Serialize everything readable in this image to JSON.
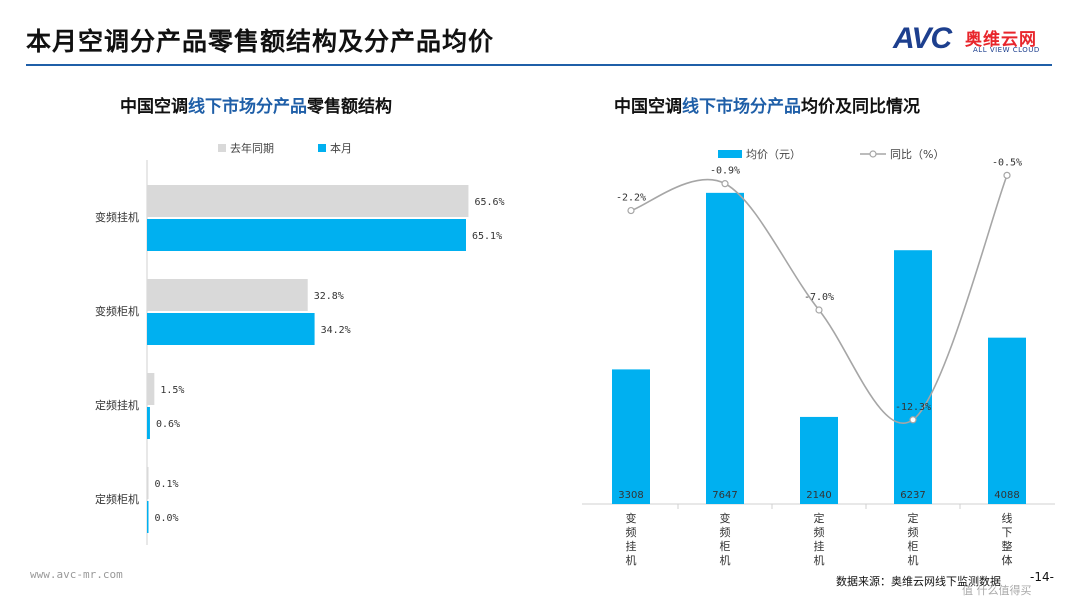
{
  "header": {
    "title": "本月空调分产品零售额结构及分产品均价",
    "logo_avc": "AVC",
    "logo_cn": "奥维云网",
    "logo_en": "ALL VIEW CLOUD"
  },
  "footer": {
    "url": "www.avc-mr.com",
    "source": "数据来源：奥维云网线下监测数据",
    "page_number": "-14-",
    "badge": "值 什么值得买"
  },
  "colors": {
    "blue": "#00b0f0",
    "gray_bar": "#d9d9d9",
    "line": "#a6a6a6",
    "accent": "#1f5fa8"
  },
  "chart_data": [
    {
      "type": "bar",
      "orientation": "horizontal",
      "title_parts": [
        "中国空调",
        "线下市场分产品",
        "零售额结构"
      ],
      "categories": [
        "变频挂机",
        "变频柜机",
        "定频挂机",
        "定频柜机"
      ],
      "series": [
        {
          "name": "去年同期",
          "values": [
            65.6,
            32.8,
            1.5,
            0.1
          ],
          "labels": [
            "65.6%",
            "32.8%",
            "1.5%",
            "0.1%"
          ]
        },
        {
          "name": "本月",
          "values": [
            65.1,
            34.2,
            0.6,
            0.0
          ],
          "labels": [
            "65.1%",
            "34.2%",
            "0.6%",
            "0.0%"
          ]
        }
      ],
      "legend_position": "top",
      "xlim": [
        0,
        70
      ],
      "grid": false
    },
    {
      "type": "bar+line",
      "title_parts": [
        "中国空调",
        "线下市场分产品",
        "均价及同比情况"
      ],
      "categories": [
        "变频挂机",
        "变频柜机",
        "定频挂机",
        "定频柜机",
        "线下整体"
      ],
      "bar_series": {
        "name": "均价（元）",
        "values": [
          3308,
          7647,
          2140,
          6237,
          4088
        ],
        "labels": [
          "3308",
          "7647",
          "2140",
          "6237",
          "4088"
        ]
      },
      "line_series": {
        "name": "同比（%）",
        "values": [
          -2.2,
          -0.9,
          -7.0,
          -12.3,
          -0.5
        ],
        "labels": [
          "-2.2%",
          "-0.9%",
          "-7.0%",
          "-12.3%",
          "-0.5%"
        ]
      },
      "y_bar_lim": [
        0,
        8700
      ],
      "y_line_lim": [
        -14,
        0
      ],
      "legend_position": "top",
      "grid": false
    }
  ]
}
